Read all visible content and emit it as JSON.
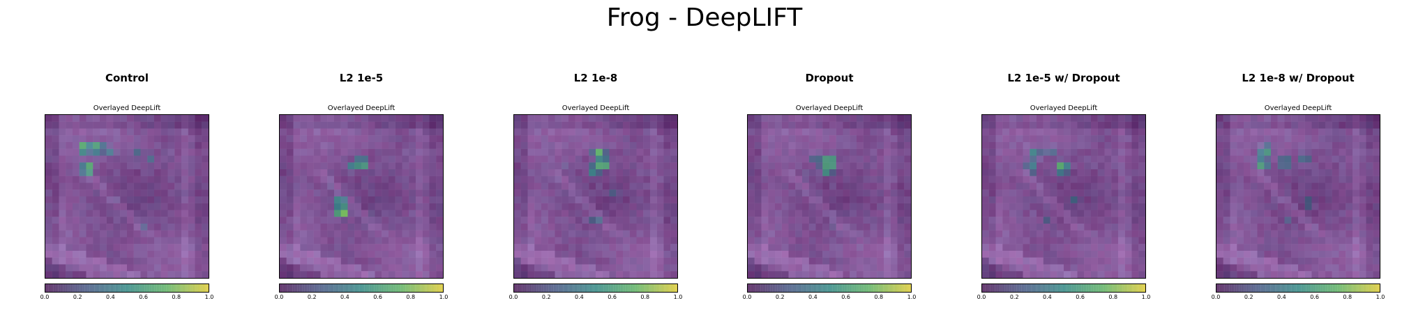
{
  "suptitle": "Frog - DeepLIFT",
  "colormap": [
    "#440154",
    "#3b528b",
    "#21918c",
    "#5ec962",
    "#fde725"
  ],
  "chart_data": [
    {
      "type": "heatmap",
      "title": "Control",
      "subtitle": "Overlayed DeepLift",
      "grid": false,
      "colorbar": {
        "range": [
          0.0,
          1.0
        ],
        "ticks": [
          "0.0",
          "0.2",
          "0.4",
          "0.6",
          "0.8",
          "1.0"
        ]
      },
      "hotspots": [
        [
          0.22,
          0.18,
          0.75
        ],
        [
          0.3,
          0.18,
          0.7
        ],
        [
          0.24,
          0.31,
          0.8
        ],
        [
          0.38,
          0.2,
          0.45
        ],
        [
          0.55,
          0.22,
          0.4
        ],
        [
          0.62,
          0.24,
          0.35
        ],
        [
          0.58,
          0.65,
          0.3
        ],
        [
          0.4,
          0.5,
          0.3
        ]
      ]
    },
    {
      "type": "heatmap",
      "title": "L2 1e-5",
      "subtitle": "Overlayed DeepLift",
      "grid": false,
      "colorbar": {
        "range": [
          0.0,
          1.0
        ],
        "ticks": [
          "0.0",
          "0.2",
          "0.4",
          "0.6",
          "0.8",
          "1.0"
        ]
      },
      "hotspots": [
        [
          0.48,
          0.28,
          0.7
        ],
        [
          0.42,
          0.3,
          0.45
        ],
        [
          0.35,
          0.5,
          0.55
        ],
        [
          0.36,
          0.57,
          0.9
        ],
        [
          0.55,
          0.6,
          0.3
        ],
        [
          0.28,
          0.4,
          0.3
        ]
      ]
    },
    {
      "type": "heatmap",
      "title": "L2 1e-8",
      "subtitle": "Overlayed DeepLift",
      "grid": false,
      "colorbar": {
        "range": [
          0.0,
          1.0
        ],
        "ticks": [
          "0.0",
          "0.2",
          "0.4",
          "0.6",
          "0.8",
          "1.0"
        ]
      },
      "hotspots": [
        [
          0.5,
          0.22,
          0.75
        ],
        [
          0.52,
          0.28,
          0.8
        ],
        [
          0.47,
          0.32,
          0.55
        ],
        [
          0.6,
          0.45,
          0.35
        ],
        [
          0.48,
          0.62,
          0.4
        ],
        [
          0.3,
          0.3,
          0.3
        ]
      ]
    },
    {
      "type": "heatmap",
      "title": "Dropout",
      "subtitle": "Overlayed DeepLift",
      "grid": false,
      "colorbar": {
        "range": [
          0.0,
          1.0
        ],
        "ticks": [
          "0.0",
          "0.2",
          "0.4",
          "0.6",
          "0.8",
          "1.0"
        ]
      },
      "hotspots": [
        [
          0.48,
          0.27,
          0.85
        ],
        [
          0.46,
          0.31,
          0.7
        ],
        [
          0.4,
          0.24,
          0.4
        ],
        [
          0.34,
          0.35,
          0.3
        ],
        [
          0.5,
          0.65,
          0.3
        ]
      ]
    },
    {
      "type": "heatmap",
      "title": "L2 1e-5 w/ Dropout",
      "subtitle": "Overlayed DeepLift",
      "grid": false,
      "colorbar": {
        "range": [
          0.0,
          1.0
        ],
        "ticks": [
          "0.0",
          "0.2",
          "0.4",
          "0.6",
          "0.8",
          "1.0"
        ]
      },
      "hotspots": [
        [
          0.3,
          0.22,
          0.55
        ],
        [
          0.28,
          0.3,
          0.5
        ],
        [
          0.47,
          0.3,
          0.75
        ],
        [
          0.4,
          0.2,
          0.4
        ],
        [
          0.55,
          0.5,
          0.35
        ],
        [
          0.38,
          0.62,
          0.3
        ]
      ]
    },
    {
      "type": "heatmap",
      "title": "L2 1e-8 w/ Dropout",
      "subtitle": "Overlayed DeepLift",
      "grid": false,
      "colorbar": {
        "range": [
          0.0,
          1.0
        ],
        "ticks": [
          "0.0",
          "0.2",
          "0.4",
          "0.6",
          "0.8",
          "1.0"
        ]
      },
      "hotspots": [
        [
          0.28,
          0.2,
          0.65
        ],
        [
          0.26,
          0.28,
          0.7
        ],
        [
          0.4,
          0.27,
          0.5
        ],
        [
          0.52,
          0.24,
          0.45
        ],
        [
          0.55,
          0.52,
          0.35
        ],
        [
          0.42,
          0.62,
          0.3
        ]
      ]
    }
  ]
}
